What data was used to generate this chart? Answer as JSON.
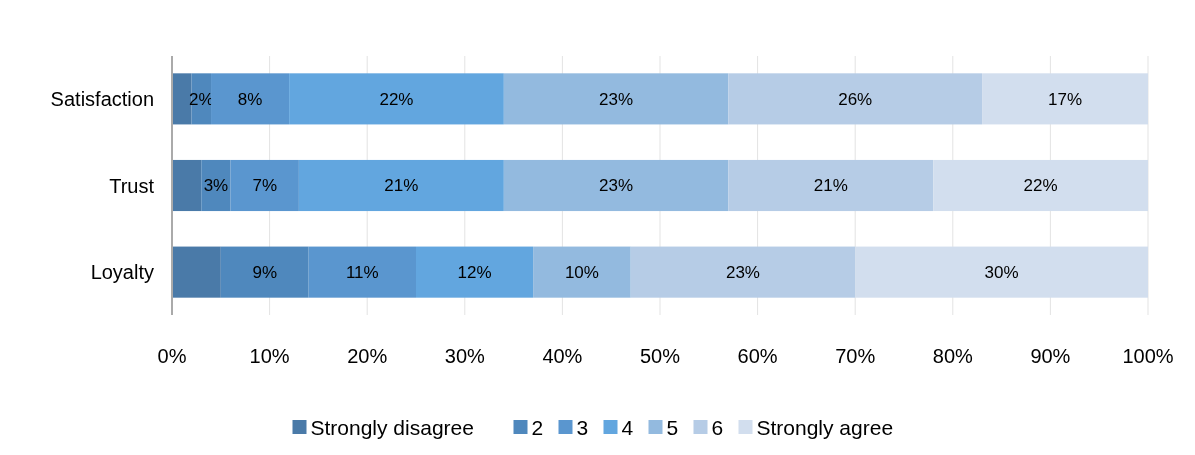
{
  "chart_data": {
    "type": "bar",
    "orientation": "horizontal",
    "stacked": true,
    "categories": [
      "Satisfaction",
      "Trust",
      "Loyalty"
    ],
    "series": [
      {
        "name": "Strongly disagree",
        "color": "#4a7aa8",
        "values": [
          2,
          3,
          5
        ],
        "value_labels": [
          null,
          null,
          null
        ]
      },
      {
        "name": "2",
        "color": "#4f88bd",
        "values": [
          2,
          3,
          9
        ],
        "value_labels": [
          "2%",
          "3%",
          "9%"
        ]
      },
      {
        "name": "3",
        "color": "#5a96cf",
        "values": [
          8,
          7,
          11
        ],
        "value_labels": [
          "8%",
          "7%",
          "11%"
        ]
      },
      {
        "name": "4",
        "color": "#62a6df",
        "values": [
          22,
          21,
          12
        ],
        "value_labels": [
          "22%",
          "21%",
          "12%"
        ]
      },
      {
        "name": "5",
        "color": "#93badf",
        "values": [
          23,
          23,
          10
        ],
        "value_labels": [
          "23%",
          "23%",
          "10%"
        ]
      },
      {
        "name": "6",
        "color": "#b6cce6",
        "values": [
          26,
          21,
          23
        ],
        "value_labels": [
          "26%",
          "21%",
          "23%"
        ]
      },
      {
        "name": "Strongly agree",
        "color": "#d2deee",
        "values": [
          17,
          22,
          30
        ],
        "value_labels": [
          "17%",
          "22%",
          "30%"
        ]
      }
    ],
    "xlim": [
      0,
      100
    ],
    "xticks": [
      {
        "value": 0,
        "label": "0%"
      },
      {
        "value": 10,
        "label": "10%"
      },
      {
        "value": 20,
        "label": "20%"
      },
      {
        "value": 30,
        "label": "30%"
      },
      {
        "value": 40,
        "label": "40%"
      },
      {
        "value": 50,
        "label": "50%"
      },
      {
        "value": 60,
        "label": "60%"
      },
      {
        "value": 70,
        "label": "70%"
      },
      {
        "value": 80,
        "label": "80%"
      },
      {
        "value": 90,
        "label": "90%"
      },
      {
        "value": 100,
        "label": "100%"
      }
    ],
    "grid": "x",
    "legend": "bottom"
  }
}
